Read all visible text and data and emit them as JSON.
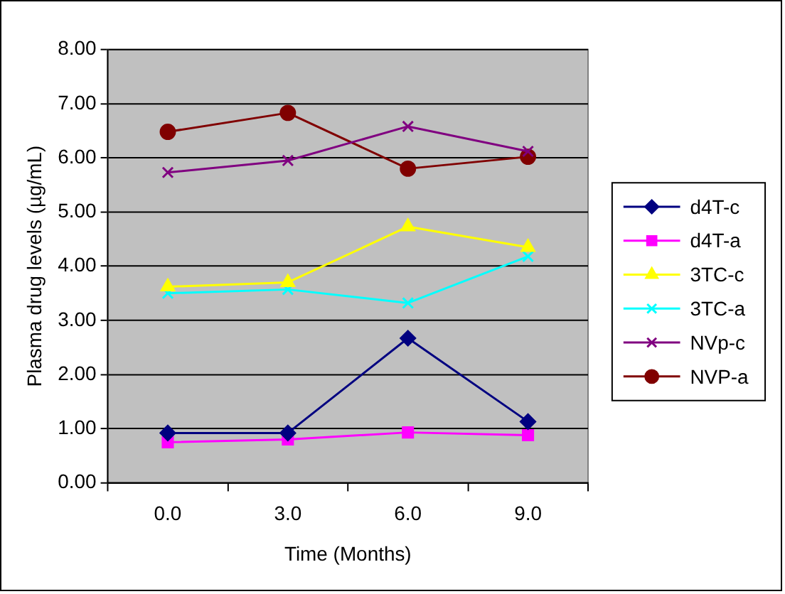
{
  "chart_data": {
    "type": "line",
    "xlabel": "Time (Months)",
    "ylabel": "Plasma drug levels (µg/mL)",
    "categories": [
      "0.0",
      "3.0",
      "6.0",
      "9.0"
    ],
    "ylim": [
      0,
      8
    ],
    "yticks": [
      {
        "value": 0,
        "label": "0.00"
      },
      {
        "value": 1,
        "label": "1.00"
      },
      {
        "value": 2,
        "label": "2.00"
      },
      {
        "value": 3,
        "label": "3.00"
      },
      {
        "value": 4,
        "label": "4.00"
      },
      {
        "value": 5,
        "label": "5.00"
      },
      {
        "value": 6,
        "label": "6.00"
      },
      {
        "value": 7,
        "label": "7.00"
      },
      {
        "value": 8,
        "label": "8.00"
      }
    ],
    "grid": "y",
    "legend": "right",
    "line_style": "solid",
    "series": [
      {
        "name": "d4T-c",
        "color": "#000080",
        "marker": "diamond",
        "values": [
          0.92,
          0.92,
          2.67,
          1.13
        ]
      },
      {
        "name": "d4T-a",
        "color": "#ff00ff",
        "marker": "square",
        "values": [
          0.75,
          0.8,
          0.93,
          0.88
        ]
      },
      {
        "name": "3TC-c",
        "color": "#ffff00",
        "marker": "triangle",
        "values": [
          3.62,
          3.7,
          4.73,
          4.35
        ]
      },
      {
        "name": "3TC-a",
        "color": "#00ffff",
        "marker": "cross",
        "values": [
          3.5,
          3.57,
          3.32,
          4.18
        ]
      },
      {
        "name": "NVp-c",
        "color": "#800080",
        "marker": "cross",
        "values": [
          5.73,
          5.95,
          6.58,
          6.12
        ]
      },
      {
        "name": "NVP-a",
        "color": "#800000",
        "marker": "circle",
        "values": [
          6.48,
          6.83,
          5.8,
          6.02
        ]
      }
    ]
  }
}
